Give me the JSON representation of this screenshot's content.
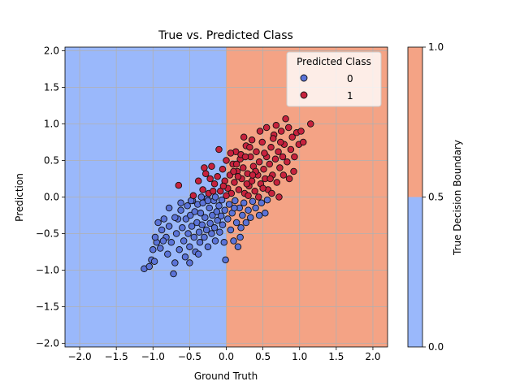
{
  "chart_data": {
    "type": "scatter",
    "title": "True vs. Predicted Class",
    "xlabel": "Ground Truth",
    "ylabel": "Prediction",
    "xlim": [
      -2.2,
      2.2
    ],
    "ylim": [
      -2.05,
      2.05
    ],
    "xticks": [
      -2.0,
      -1.5,
      -1.0,
      -0.5,
      0.0,
      0.5,
      1.0,
      1.5,
      2.0
    ],
    "xtick_labels": [
      "−2.0",
      "−1.5",
      "−1.0",
      "−0.5",
      "0.0",
      "0.5",
      "1.0",
      "1.5",
      "2.0"
    ],
    "yticks": [
      -2.0,
      -1.5,
      -1.0,
      -0.5,
      0.0,
      0.5,
      1.0,
      1.5,
      2.0
    ],
    "ytick_labels": [
      "−2.0",
      "−1.5",
      "−1.0",
      "−0.5",
      "0.0",
      "0.5",
      "1.0",
      "1.5",
      "2.0"
    ],
    "grid": true,
    "background_regions": [
      {
        "x_from": -2.2,
        "x_to": 0.0,
        "class": 0,
        "color": "#9ab8fb"
      },
      {
        "x_from": 0.0,
        "x_to": 2.2,
        "class": 1,
        "color": "#f4a385"
      }
    ],
    "legend": {
      "title": "Predicted Class",
      "placement": "top-right",
      "entries": [
        {
          "label": "0",
          "color": "#5b73d8"
        },
        {
          "label": "1",
          "color": "#c7223d"
        }
      ]
    },
    "series": [
      {
        "name": "0",
        "color": "#5b73d8",
        "points": [
          [
            -1.12,
            -0.98
          ],
          [
            -1.05,
            -0.95
          ],
          [
            -1.02,
            -0.86
          ],
          [
            -0.98,
            -0.88
          ],
          [
            -1.0,
            -0.72
          ],
          [
            -0.95,
            -0.62
          ],
          [
            -0.97,
            -0.55
          ],
          [
            -0.9,
            -0.7
          ],
          [
            -0.88,
            -0.45
          ],
          [
            -0.85,
            -0.3
          ],
          [
            -0.82,
            -0.55
          ],
          [
            -0.8,
            -0.78
          ],
          [
            -0.78,
            -0.4
          ],
          [
            -0.75,
            -0.62
          ],
          [
            -0.72,
            -1.05
          ],
          [
            -0.7,
            -0.9
          ],
          [
            -0.68,
            -0.5
          ],
          [
            -0.66,
            -0.3
          ],
          [
            -0.64,
            -0.72
          ],
          [
            -0.62,
            -0.18
          ],
          [
            -0.6,
            -0.42
          ],
          [
            -0.58,
            -0.6
          ],
          [
            -0.56,
            -0.82
          ],
          [
            -0.55,
            -0.3
          ],
          [
            -0.53,
            -0.12
          ],
          [
            -0.52,
            -0.5
          ],
          [
            -0.5,
            -0.68
          ],
          [
            -0.49,
            -0.25
          ],
          [
            -0.47,
            -0.4
          ],
          [
            -0.46,
            -0.05
          ],
          [
            -0.44,
            -0.55
          ],
          [
            -0.43,
            -0.2
          ],
          [
            -0.42,
            -0.75
          ],
          [
            -0.4,
            -0.35
          ],
          [
            -0.39,
            -0.1
          ],
          [
            -0.37,
            -0.48
          ],
          [
            -0.36,
            -0.62
          ],
          [
            -0.35,
            -0.22
          ],
          [
            -0.33,
            -0.38
          ],
          [
            -0.32,
            -0.08
          ],
          [
            -0.3,
            -0.55
          ],
          [
            -0.29,
            -0.28
          ],
          [
            -0.27,
            -0.45
          ],
          [
            -0.26,
            -0.02
          ],
          [
            -0.25,
            -0.68
          ],
          [
            -0.23,
            -0.15
          ],
          [
            -0.22,
            -0.36
          ],
          [
            -0.2,
            -0.5
          ],
          [
            -0.19,
            -0.25
          ],
          [
            -0.17,
            -0.05
          ],
          [
            -0.16,
            -0.42
          ],
          [
            -0.15,
            -0.6
          ],
          [
            -0.13,
            -0.2
          ],
          [
            -0.12,
            -0.32
          ],
          [
            -0.1,
            -0.12
          ],
          [
            -0.09,
            -0.48
          ],
          [
            -0.07,
            -0.26
          ],
          [
            -0.06,
            -0.04
          ],
          [
            -0.05,
            -0.38
          ],
          [
            -0.03,
            -0.62
          ],
          [
            -0.02,
            -0.18
          ],
          [
            -0.01,
            -0.86
          ],
          [
            0.02,
            -0.3
          ],
          [
            0.04,
            -0.1
          ],
          [
            0.06,
            -0.45
          ],
          [
            0.08,
            -0.22
          ],
          [
            0.1,
            -0.6
          ],
          [
            0.12,
            -0.05
          ],
          [
            0.14,
            -0.35
          ],
          [
            0.16,
            -0.68
          ],
          [
            0.18,
            -0.15
          ],
          [
            0.2,
            -0.42
          ],
          [
            0.22,
            -0.25
          ],
          [
            0.24,
            -0.08
          ],
          [
            0.27,
            -0.35
          ],
          [
            0.3,
            -0.18
          ],
          [
            0.33,
            -0.28
          ],
          [
            0.36,
            -0.06
          ],
          [
            0.4,
            -0.15
          ],
          [
            0.45,
            -0.25
          ],
          [
            0.48,
            -0.08
          ],
          [
            0.53,
            -0.22
          ],
          [
            0.56,
            -0.04
          ],
          [
            -0.7,
            -0.28
          ],
          [
            -0.62,
            -0.08
          ],
          [
            -0.5,
            -0.9
          ],
          [
            -0.38,
            -0.78
          ],
          [
            -0.25,
            -0.05
          ],
          [
            -0.86,
            -0.6
          ],
          [
            -0.93,
            -0.35
          ],
          [
            -0.78,
            -0.15
          ],
          [
            -0.34,
            0.0
          ],
          [
            -0.48,
            -0.05
          ],
          [
            -0.15,
            0.0
          ],
          [
            0.11,
            -0.15
          ],
          [
            0.19,
            -0.55
          ]
        ]
      },
      {
        "name": "1",
        "color": "#c7223d",
        "points": [
          [
            -0.65,
            0.16
          ],
          [
            -0.45,
            0.02
          ],
          [
            -0.38,
            0.22
          ],
          [
            -0.32,
            0.1
          ],
          [
            -0.28,
            0.32
          ],
          [
            -0.24,
            0.05
          ],
          [
            -0.2,
            0.42
          ],
          [
            -0.16,
            0.18
          ],
          [
            -0.12,
            0.28
          ],
          [
            -0.1,
            0.65
          ],
          [
            -0.08,
            0.08
          ],
          [
            -0.05,
            0.38
          ],
          [
            -0.02,
            0.22
          ],
          [
            0.0,
            0.5
          ],
          [
            0.02,
            0.12
          ],
          [
            0.05,
            0.3
          ],
          [
            0.07,
            0.05
          ],
          [
            0.09,
            0.45
          ],
          [
            0.11,
            0.2
          ],
          [
            0.13,
            0.62
          ],
          [
            0.15,
            0.35
          ],
          [
            0.17,
            0.1
          ],
          [
            0.19,
            0.52
          ],
          [
            0.21,
            0.25
          ],
          [
            0.23,
            0.4
          ],
          [
            0.25,
            0.05
          ],
          [
            0.27,
            0.7
          ],
          [
            0.29,
            0.32
          ],
          [
            0.31,
            0.15
          ],
          [
            0.33,
            0.55
          ],
          [
            0.35,
            0.22
          ],
          [
            0.37,
            0.42
          ],
          [
            0.39,
            0.08
          ],
          [
            0.41,
            0.62
          ],
          [
            0.43,
            0.3
          ],
          [
            0.45,
            0.48
          ],
          [
            0.47,
            0.18
          ],
          [
            0.49,
            0.75
          ],
          [
            0.51,
            0.38
          ],
          [
            0.53,
            0.25
          ],
          [
            0.55,
            0.55
          ],
          [
            0.57,
            0.1
          ],
          [
            0.59,
            0.45
          ],
          [
            0.61,
            0.68
          ],
          [
            0.63,
            0.3
          ],
          [
            0.65,
            0.85
          ],
          [
            0.67,
            0.52
          ],
          [
            0.69,
            0.2
          ],
          [
            0.71,
            0.62
          ],
          [
            0.73,
            0.4
          ],
          [
            0.75,
            0.9
          ],
          [
            0.77,
            0.55
          ],
          [
            0.79,
            0.72
          ],
          [
            0.81,
            1.07
          ],
          [
            0.83,
            0.48
          ],
          [
            0.85,
            0.95
          ],
          [
            0.88,
            0.65
          ],
          [
            0.9,
            0.82
          ],
          [
            0.93,
            0.55
          ],
          [
            0.96,
            0.88
          ],
          [
            0.99,
            0.72
          ],
          [
            1.02,
            0.9
          ],
          [
            1.05,
            0.75
          ],
          [
            1.15,
            1.0
          ],
          [
            0.72,
            0.0
          ],
          [
            0.62,
            0.05
          ],
          [
            0.5,
            0.12
          ],
          [
            0.44,
            0.0
          ],
          [
            0.3,
            0.02
          ],
          [
            0.2,
            0.58
          ],
          [
            0.24,
            0.82
          ],
          [
            0.35,
            0.78
          ],
          [
            0.55,
            0.95
          ],
          [
            0.68,
            0.98
          ],
          [
            0.78,
            0.3
          ],
          [
            0.92,
            0.35
          ],
          [
            0.86,
            0.25
          ],
          [
            0.6,
            0.25
          ],
          [
            0.4,
            0.35
          ],
          [
            0.1,
            0.35
          ],
          [
            0.06,
            0.6
          ],
          [
            0.14,
            0.45
          ],
          [
            0.26,
            0.55
          ],
          [
            0.32,
            0.68
          ],
          [
            0.46,
            0.9
          ],
          [
            0.52,
            0.6
          ],
          [
            0.64,
            0.8
          ],
          [
            0.74,
            0.75
          ],
          [
            -0.3,
            0.4
          ],
          [
            -0.22,
            0.25
          ],
          [
            -0.18,
            0.08
          ],
          [
            -0.04,
            0.15
          ],
          [
            0.0,
            0.02
          ],
          [
            0.16,
            0.28
          ],
          [
            0.28,
            0.18
          ],
          [
            0.36,
            0.3
          ]
        ]
      }
    ],
    "colorbar": {
      "label": "True Decision Boundary",
      "ticks": [
        0.0,
        0.5,
        1.0
      ],
      "tick_labels": [
        "0.0",
        "0.5",
        "1.0"
      ],
      "segments": [
        {
          "from": 0.0,
          "to": 0.5,
          "color": "#9ab8fb"
        },
        {
          "from": 0.5,
          "to": 1.0,
          "color": "#f4a385"
        }
      ]
    }
  }
}
